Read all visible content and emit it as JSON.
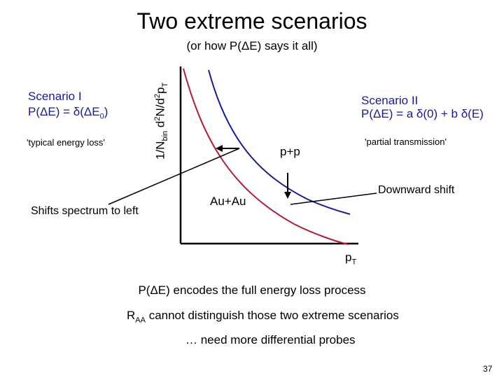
{
  "title": "Two extreme scenarios",
  "subtitle": "(or how P(ΔE) says it all)",
  "scenario1": {
    "title": "Scenario I",
    "formula_prefix": "P(ΔE) = δ(ΔE",
    "formula_sub": "0",
    "formula_suffix": ")",
    "note": "'typical energy loss'",
    "effect": "Shifts spectrum to left"
  },
  "scenario2": {
    "title": "Scenario II",
    "formula": "P(ΔE) = a δ(0) + b δ(E)",
    "note": "'partial transmission'",
    "effect": "Downward shift"
  },
  "plot": {
    "y_axis": {
      "part1": "1/N",
      "sub1": "bin",
      "part2": " d",
      "sup1": "2",
      "part3": "N/d",
      "sup2": "2",
      "part4": "p",
      "sub2": "T"
    },
    "x_axis": {
      "base": "p",
      "sub": "T"
    },
    "curve_pp_label": "p+p",
    "curve_auau_label": "Au+Au",
    "colors": {
      "pp_curve": "#b31b3b",
      "auau_curve": "#1a1a99",
      "axes": "#000000",
      "arrows": "#000000"
    }
  },
  "conclusions": {
    "line1": "P(ΔE) encodes the full energy loss process",
    "line2_base": "R",
    "line2_sub": "AA",
    "line2_rest": " cannot distinguish those two extreme scenarios",
    "line3": "… need more differential probes"
  },
  "page_number": "37"
}
